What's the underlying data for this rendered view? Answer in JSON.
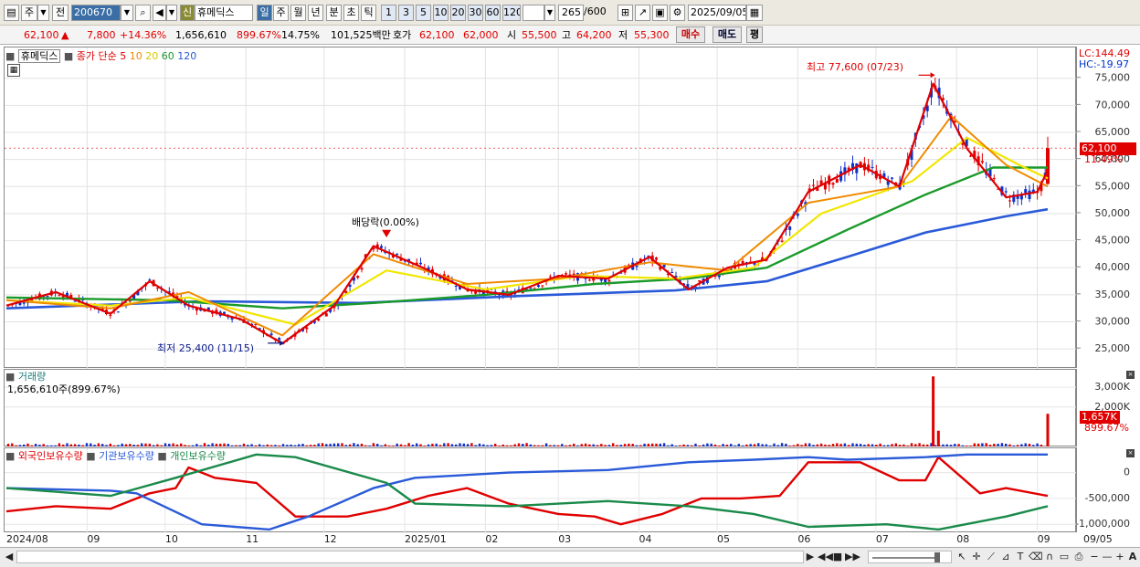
{
  "toolbar": {
    "market": "주",
    "prefix": "전",
    "code": "200670",
    "badge": "신",
    "name": "휴메딕스",
    "periods": [
      "일",
      "주",
      "월",
      "년",
      "분",
      "초",
      "틱"
    ],
    "numbers": [
      "1",
      "3",
      "5",
      "10",
      "20",
      "30",
      "60",
      "120"
    ],
    "count": "265",
    "count_max": "/600",
    "date": "2025/09/05"
  },
  "quote": {
    "price": "62,100",
    "change": "7,800",
    "change_pct": "+14.36%",
    "volume": "1,656,610",
    "volume_pct": "899.67%",
    "turnover": "14.75%",
    "amount": "101,525백만",
    "bid_label": "호가",
    "bid1": "62,100",
    "bid2": "62,000",
    "open_label": "시",
    "open": "55,500",
    "high_label": "고",
    "high": "64,200",
    "low_label": "저",
    "low": "55,300",
    "buy": "매수",
    "sell": "매도",
    "eval": "평"
  },
  "legend": {
    "stock": "휴메딕스",
    "ma_label": "종가 단순",
    "ma5": "5",
    "ma10": "10",
    "ma20": "20",
    "ma60": "60",
    "ma120": "120",
    "volume_title": "거래량",
    "volume_value": "1,656,610주(899.67%)",
    "holdings": [
      "외국인보유수량",
      "기관보유수량",
      "개인보유수량"
    ]
  },
  "annotations": {
    "lc": "LC:144.49",
    "hc": "HC:-19.97",
    "max": "최고 77,600 (07/23)",
    "min": "최저 25,400 (11/15)",
    "dividend": "배당락(0.00%)",
    "last_price": "62,100",
    "last_pct": "11.49%",
    "last_vol": "1,657K",
    "last_vol_pct": "899.67%"
  },
  "colors": {
    "ma5": "#e00000",
    "ma10": "#f08a00",
    "ma20": "#f2e600",
    "ma60": "#1a9a2a",
    "ma120": "#2a5ad8",
    "up": "#e00000",
    "down": "#1030c8"
  },
  "chart_data": [
    {
      "type": "line",
      "title": "",
      "y_ticks": [
        "75,000",
        "70,000",
        "65,000",
        "60,000",
        "55,000",
        "50,000",
        "45,000",
        "40,000",
        "35,000",
        "30,000",
        "25,000"
      ],
      "ylim": [
        22500,
        79000
      ],
      "x_labels": [
        "2024/08",
        "09",
        "10",
        "11",
        "12",
        "2025/01",
        "02",
        "03",
        "04",
        "05",
        "06",
        "07",
        "08",
        "09",
        "09/05"
      ],
      "x_range": [
        "2024-08-01",
        "2025-09-05"
      ],
      "series": [
        {
          "name": "5",
          "x": [
            "2024-08-01",
            "2024-08-20",
            "2024-09-10",
            "2024-09-25",
            "2024-10-10",
            "2024-10-30",
            "2024-11-15",
            "2024-12-05",
            "2024-12-20",
            "2025-01-08",
            "2025-01-25",
            "2025-02-10",
            "2025-03-01",
            "2025-03-20",
            "2025-04-05",
            "2025-04-20",
            "2025-05-05",
            "2025-05-20",
            "2025-06-05",
            "2025-06-25",
            "2025-07-10",
            "2025-07-23",
            "2025-08-05",
            "2025-08-20",
            "2025-09-01",
            "2025-09-05"
          ],
          "values": [
            33000,
            35500,
            31500,
            37500,
            33000,
            30500,
            26000,
            33000,
            44000,
            40000,
            36000,
            35000,
            38500,
            38000,
            42000,
            36000,
            40000,
            41500,
            54000,
            59000,
            55000,
            74000,
            62000,
            53000,
            54000,
            58000
          ]
        },
        {
          "name": "10",
          "x": [
            "2024-08-01",
            "2024-09-10",
            "2024-10-10",
            "2024-11-15",
            "2024-12-20",
            "2025-01-25",
            "2025-03-01",
            "2025-04-05",
            "2025-05-05",
            "2025-06-05",
            "2025-07-10",
            "2025-07-30",
            "2025-08-20",
            "2025-09-05"
          ],
          "values": [
            34000,
            32500,
            35500,
            27500,
            42500,
            37000,
            38000,
            41000,
            39500,
            52000,
            55000,
            68000,
            59000,
            55000
          ]
        },
        {
          "name": "20",
          "x": [
            "2024-08-01",
            "2024-09-10",
            "2024-10-10",
            "2024-11-20",
            "2024-12-25",
            "2025-02-01",
            "2025-03-10",
            "2025-04-15",
            "2025-05-15",
            "2025-06-10",
            "2025-07-15",
            "2025-08-05",
            "2025-08-25",
            "2025-09-05"
          ],
          "values": [
            34000,
            33000,
            34500,
            29500,
            39500,
            36000,
            38500,
            38000,
            40000,
            50000,
            56000,
            64000,
            59000,
            56500
          ]
        },
        {
          "name": "60",
          "x": [
            "2024-08-01",
            "2024-10-01",
            "2024-11-15",
            "2024-12-20",
            "2025-02-01",
            "2025-03-15",
            "2025-04-20",
            "2025-05-20",
            "2025-06-20",
            "2025-07-20",
            "2025-08-15",
            "2025-09-05"
          ],
          "values": [
            34500,
            34000,
            32500,
            33500,
            35000,
            37000,
            38000,
            40000,
            47000,
            53500,
            58500,
            58500
          ]
        },
        {
          "name": "120",
          "x": [
            "2024-08-01",
            "2024-10-15",
            "2024-12-15",
            "2025-02-15",
            "2025-04-15",
            "2025-05-20",
            "2025-06-20",
            "2025-07-20",
            "2025-08-20",
            "2025-09-05"
          ],
          "values": [
            32500,
            33800,
            33500,
            34800,
            35800,
            37500,
            42000,
            46500,
            49500,
            50800
          ]
        }
      ],
      "max_point": {
        "x": "2025-07-23",
        "y": 77600
      },
      "min_point": {
        "x": "2024-11-15",
        "y": 25400
      }
    },
    {
      "type": "bar",
      "title": "거래량",
      "y_ticks": [
        "3,000K",
        "2,000K"
      ],
      "ylim": [
        0,
        3700000
      ],
      "spikes": [
        {
          "x": "2025-07-23",
          "y": 3550000
        },
        {
          "x": "2025-07-25",
          "y": 800000
        },
        {
          "x": "2025-09-05",
          "y": 1656610
        }
      ],
      "baseline": 110000
    },
    {
      "type": "line",
      "title": "보유수량",
      "y_ticks": [
        "0",
        "-500,000",
        "-1,000,000"
      ],
      "ylim": [
        -1120000,
        400000
      ],
      "series": [
        {
          "name": "외국인보유수량",
          "x": [
            "2024-08-01",
            "2024-08-20",
            "2024-09-10",
            "2024-09-25",
            "2024-10-05",
            "2024-10-10",
            "2024-10-20",
            "2024-11-05",
            "2024-11-20",
            "2024-12-10",
            "2024-12-25",
            "2025-01-10",
            "2025-01-25",
            "2025-02-10",
            "2025-03-01",
            "2025-03-15",
            "2025-03-25",
            "2025-04-10",
            "2025-04-25",
            "2025-05-10",
            "2025-05-25",
            "2025-06-05",
            "2025-06-25",
            "2025-07-10",
            "2025-07-20",
            "2025-07-25",
            "2025-08-10",
            "2025-08-20",
            "2025-09-05"
          ],
          "values": [
            -750000,
            -650000,
            -700000,
            -400000,
            -300000,
            100000,
            -100000,
            -200000,
            -850000,
            -850000,
            -700000,
            -450000,
            -300000,
            -600000,
            -800000,
            -850000,
            -1000000,
            -800000,
            -500000,
            -500000,
            -450000,
            200000,
            200000,
            -150000,
            -150000,
            300000,
            -400000,
            -300000,
            -450000
          ]
        },
        {
          "name": "기관보유수량",
          "x": [
            "2024-08-01",
            "2024-09-10",
            "2024-09-20",
            "2024-10-15",
            "2024-11-10",
            "2024-11-25",
            "2024-12-20",
            "2025-01-05",
            "2025-02-10",
            "2025-03-20",
            "2025-04-20",
            "2025-05-15",
            "2025-06-05",
            "2025-06-20",
            "2025-07-20",
            "2025-08-05",
            "2025-09-05"
          ],
          "values": [
            -300000,
            -350000,
            -400000,
            -1000000,
            -1100000,
            -850000,
            -300000,
            -100000,
            0,
            50000,
            200000,
            250000,
            300000,
            250000,
            300000,
            350000,
            350000
          ]
        },
        {
          "name": "개인보유수량",
          "x": [
            "2024-08-01",
            "2024-09-10",
            "2024-10-05",
            "2024-11-05",
            "2024-11-20",
            "2024-12-25",
            "2025-01-05",
            "2025-02-10",
            "2025-03-20",
            "2025-04-20",
            "2025-05-15",
            "2025-06-05",
            "2025-07-05",
            "2025-07-25",
            "2025-08-20",
            "2025-09-05"
          ],
          "values": [
            -300000,
            -450000,
            -100000,
            350000,
            300000,
            -200000,
            -600000,
            -650000,
            -550000,
            -650000,
            -800000,
            -1050000,
            -1000000,
            -1100000,
            -850000,
            -650000
          ]
        }
      ]
    }
  ]
}
